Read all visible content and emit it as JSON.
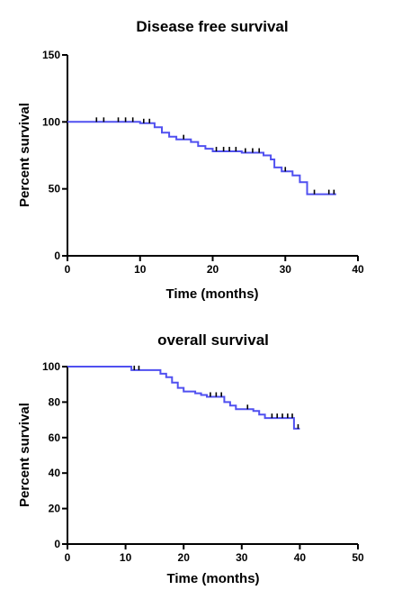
{
  "colors": {
    "curve": "#5050f0",
    "axis": "#000000",
    "censor": "#000000"
  },
  "chart_data": [
    {
      "type": "line",
      "title": "Disease free survival",
      "xlabel": "Time (months)",
      "ylabel": "Percent survival",
      "xlim": [
        0,
        40
      ],
      "ylim": [
        0,
        150
      ],
      "xticks": [
        0,
        10,
        20,
        30,
        40
      ],
      "yticks": [
        0,
        50,
        100,
        150
      ],
      "grid": false,
      "step": true,
      "series": [
        {
          "points": [
            [
              0,
              100
            ],
            [
              10,
              100
            ],
            [
              10,
              99
            ],
            [
              12,
              99
            ],
            [
              12,
              96
            ],
            [
              13,
              96
            ],
            [
              13,
              92
            ],
            [
              14,
              92
            ],
            [
              14,
              89
            ],
            [
              15,
              89
            ],
            [
              15,
              87
            ],
            [
              17,
              87
            ],
            [
              17,
              85
            ],
            [
              18,
              85
            ],
            [
              18,
              82
            ],
            [
              19,
              82
            ],
            [
              19,
              80
            ],
            [
              20,
              80
            ],
            [
              20,
              78
            ],
            [
              24,
              78
            ],
            [
              24,
              77
            ],
            [
              27,
              77
            ],
            [
              27,
              75
            ],
            [
              28,
              75
            ],
            [
              28,
              72
            ],
            [
              28.5,
              72
            ],
            [
              28.5,
              66
            ],
            [
              29.5,
              66
            ],
            [
              29.5,
              63
            ],
            [
              31,
              63
            ],
            [
              31,
              60
            ],
            [
              32,
              60
            ],
            [
              32,
              55
            ],
            [
              33,
              55
            ],
            [
              33,
              46
            ],
            [
              37,
              46
            ]
          ],
          "censored": [
            [
              4,
              100
            ],
            [
              5,
              100
            ],
            [
              7,
              100
            ],
            [
              8,
              100
            ],
            [
              9,
              100
            ],
            [
              10.5,
              99
            ],
            [
              11.3,
              99
            ],
            [
              16,
              87
            ],
            [
              20.5,
              78
            ],
            [
              21.5,
              78
            ],
            [
              22.3,
              78
            ],
            [
              23.2,
              78
            ],
            [
              24.5,
              77
            ],
            [
              25.5,
              77
            ],
            [
              26.4,
              77
            ],
            [
              30,
              63
            ],
            [
              34,
              46
            ],
            [
              36,
              46
            ],
            [
              36.7,
              46
            ]
          ]
        }
      ]
    },
    {
      "type": "line",
      "title": "overall survival",
      "xlabel": "Time (months)",
      "ylabel": "Percent survival",
      "xlim": [
        0,
        50
      ],
      "ylim": [
        0,
        100
      ],
      "xticks": [
        0,
        10,
        20,
        30,
        40,
        50
      ],
      "yticks": [
        0,
        20,
        40,
        60,
        80,
        100
      ],
      "grid": false,
      "step": true,
      "series": [
        {
          "points": [
            [
              0,
              100
            ],
            [
              11,
              100
            ],
            [
              11,
              98
            ],
            [
              16,
              98
            ],
            [
              16,
              96
            ],
            [
              17,
              96
            ],
            [
              17,
              94
            ],
            [
              18,
              94
            ],
            [
              18,
              91
            ],
            [
              19,
              91
            ],
            [
              19,
              88
            ],
            [
              20,
              88
            ],
            [
              20,
              86
            ],
            [
              22,
              86
            ],
            [
              22,
              85
            ],
            [
              23,
              85
            ],
            [
              23,
              84
            ],
            [
              24,
              84
            ],
            [
              24,
              83
            ],
            [
              27,
              83
            ],
            [
              27,
              80
            ],
            [
              28,
              80
            ],
            [
              28,
              78
            ],
            [
              29,
              78
            ],
            [
              29,
              76
            ],
            [
              32,
              76
            ],
            [
              32,
              75
            ],
            [
              33,
              75
            ],
            [
              33,
              73
            ],
            [
              34,
              73
            ],
            [
              34,
              71
            ],
            [
              39,
              71
            ],
            [
              39,
              65
            ],
            [
              40,
              65
            ]
          ],
          "censored": [
            [
              11.5,
              98
            ],
            [
              12.3,
              98
            ],
            [
              24.6,
              83
            ],
            [
              25.6,
              83
            ],
            [
              26.5,
              83
            ],
            [
              31,
              76
            ],
            [
              35.2,
              71
            ],
            [
              36.1,
              71
            ],
            [
              37,
              71
            ],
            [
              37.9,
              71
            ],
            [
              38.7,
              71
            ],
            [
              39.7,
              65
            ]
          ]
        }
      ]
    }
  ]
}
